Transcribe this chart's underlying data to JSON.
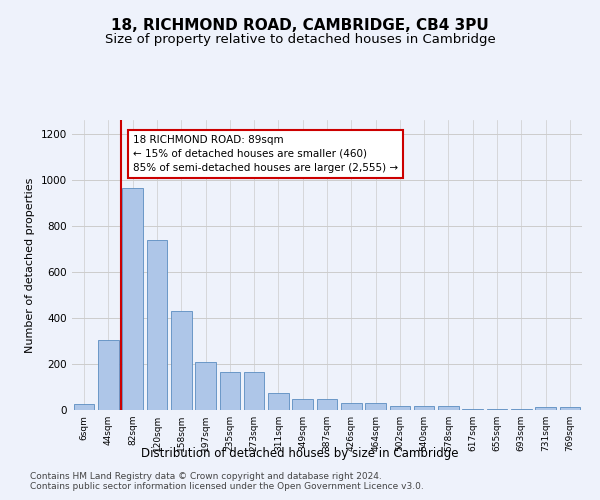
{
  "title1": "18, RICHMOND ROAD, CAMBRIDGE, CB4 3PU",
  "title2": "Size of property relative to detached houses in Cambridge",
  "xlabel": "Distribution of detached houses by size in Cambridge",
  "ylabel": "Number of detached properties",
  "categories": [
    "6sqm",
    "44sqm",
    "82sqm",
    "120sqm",
    "158sqm",
    "197sqm",
    "235sqm",
    "273sqm",
    "311sqm",
    "349sqm",
    "387sqm",
    "426sqm",
    "464sqm",
    "502sqm",
    "540sqm",
    "578sqm",
    "617sqm",
    "655sqm",
    "693sqm",
    "731sqm",
    "769sqm"
  ],
  "values": [
    25,
    305,
    965,
    740,
    430,
    210,
    165,
    165,
    75,
    47,
    47,
    30,
    30,
    18,
    18,
    18,
    5,
    5,
    5,
    15,
    15
  ],
  "bar_color": "#aec6e8",
  "bar_edge_color": "#5b8dc0",
  "vline_x_index": 2,
  "vline_color": "#cc0000",
  "annotation_line1": "18 RICHMOND ROAD: 89sqm",
  "annotation_line2": "← 15% of detached houses are smaller (460)",
  "annotation_line3": "85% of semi-detached houses are larger (2,555) →",
  "annotation_box_color": "#ffffff",
  "annotation_box_edge_color": "#cc0000",
  "ylim": [
    0,
    1260
  ],
  "yticks": [
    0,
    200,
    400,
    600,
    800,
    1000,
    1200
  ],
  "grid_color": "#cccccc",
  "bg_color": "#eef2fb",
  "footer1": "Contains HM Land Registry data © Crown copyright and database right 2024.",
  "footer2": "Contains public sector information licensed under the Open Government Licence v3.0.",
  "title1_fontsize": 11,
  "title2_fontsize": 9.5,
  "xlabel_fontsize": 8.5,
  "ylabel_fontsize": 8,
  "annotation_fontsize": 7.5,
  "footer_fontsize": 6.5
}
